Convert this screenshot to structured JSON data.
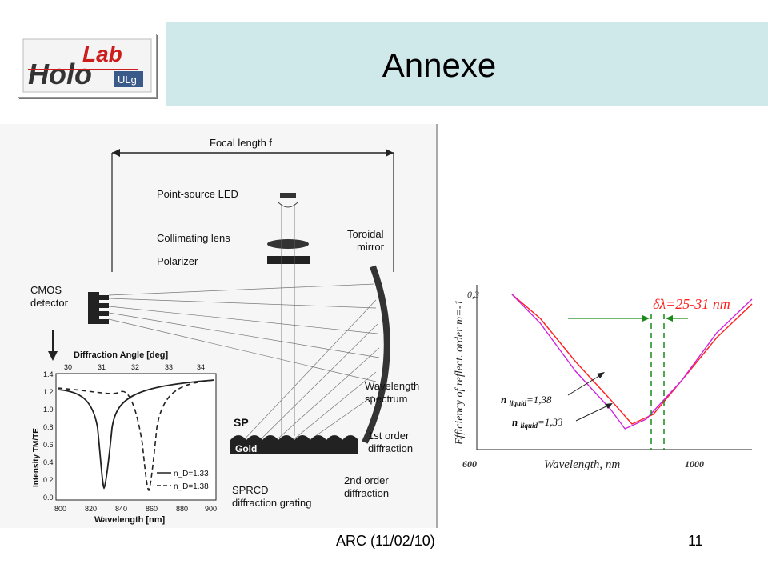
{
  "header": {
    "title": "Annexe",
    "logo": {
      "text_lab": "Lab",
      "text_holo": "Holo",
      "text_ulg": "ULg"
    }
  },
  "figure": {
    "focal_length_label": "Focal length f",
    "point_source_label": "Point-source LED",
    "collimating_lens_label": "Collimating lens",
    "polarizer_label": "Polarizer",
    "toroidal_mirror_label": "Toroidal\nmirror",
    "cmos_label": "CMOS\ndetector",
    "wavelength_spectrum_label": "Wavelength\nspectrum",
    "sp_label": "SP",
    "gold_label": "Gold",
    "first_order_label": "1st order\ndiffraction",
    "second_order_label": "2nd order\ndiffraction",
    "grating_label": "SPRCD\ndiffraction grating",
    "inset": {
      "top_axis_label": "Diffraction Angle [deg]",
      "top_ticks": [
        "30",
        "31",
        "32",
        "33",
        "34"
      ],
      "y_axis_label": "Intensity TM/TE",
      "y_ticks": [
        "1.4",
        "1.2",
        "1.0",
        "0.8",
        "0.6",
        "0.4",
        "0.2",
        "0.0"
      ],
      "x_axis_label": "Wavelength [nm]",
      "x_ticks": [
        "800",
        "820",
        "840",
        "860",
        "880",
        "900"
      ],
      "legend": [
        "n_D=1.33",
        "n_D=1.38"
      ]
    }
  },
  "chart_data": {
    "type": "line",
    "xlabel": "Wavelength, nm",
    "ylabel": "Efficiency of reflect. order m=-1",
    "x_ticks": [
      "600",
      "1000"
    ],
    "y_ticks": [
      "0,3"
    ],
    "xlim": [
      600,
      1000
    ],
    "annotation": "δλ=25-31 nm",
    "series": [
      {
        "name": "n liquid=1,38",
        "color": "#ff2020",
        "x": [
          660,
          700,
          750,
          800,
          830,
          860,
          900,
          950,
          1000
        ],
        "y": [
          0.29,
          0.24,
          0.15,
          0.07,
          0.02,
          0.04,
          0.11,
          0.2,
          0.27
        ]
      },
      {
        "name": "n liquid=1,33",
        "color": "#d020e0",
        "x": [
          660,
          700,
          750,
          800,
          820,
          850,
          900,
          950,
          1000
        ],
        "y": [
          0.29,
          0.23,
          0.13,
          0.05,
          0.01,
          0.03,
          0.11,
          0.21,
          0.28
        ]
      }
    ],
    "labels": {
      "n138": {
        "n": "n ",
        "sub": "liquid",
        "rest": "=1,38"
      },
      "n133": {
        "n": "n ",
        "sub": "liquid",
        "rest": "=1,33"
      }
    }
  },
  "footer": {
    "center": "ARC (11/02/10)",
    "page": "11"
  }
}
